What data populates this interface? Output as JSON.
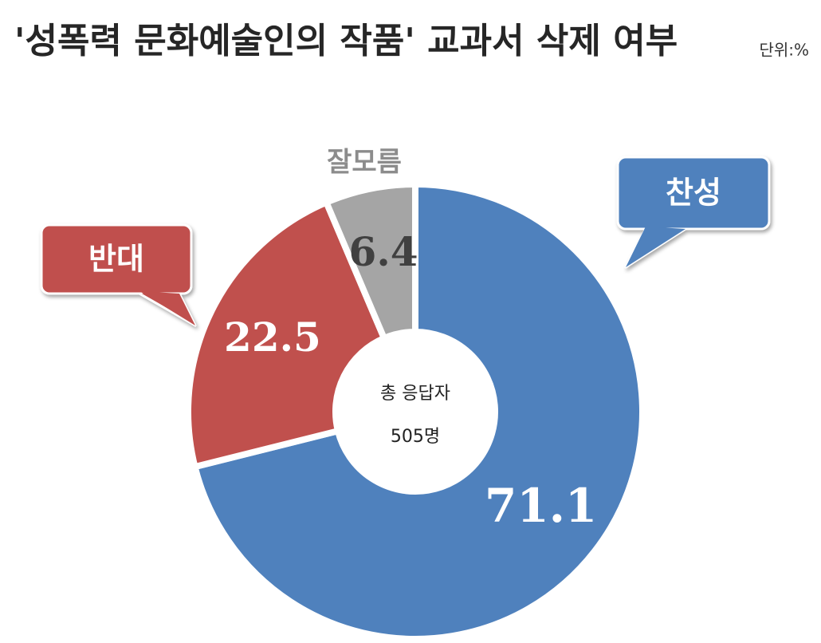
{
  "chart_data": {
    "type": "donut",
    "title": "'성폭력 문화예술인의 작품' 교과서 삭제 여부",
    "unit": "단위:%",
    "center_text": [
      "총 응답자",
      "505명"
    ],
    "categories": [
      "찬성",
      "반대",
      "잘모름"
    ],
    "values": [
      71.1,
      22.5,
      6.4
    ],
    "colors": [
      "#4f81bd",
      "#c0504d",
      "#a5a5a5"
    ],
    "label_colors": [
      "#ffffff",
      "#ffffff",
      "#404040"
    ]
  }
}
